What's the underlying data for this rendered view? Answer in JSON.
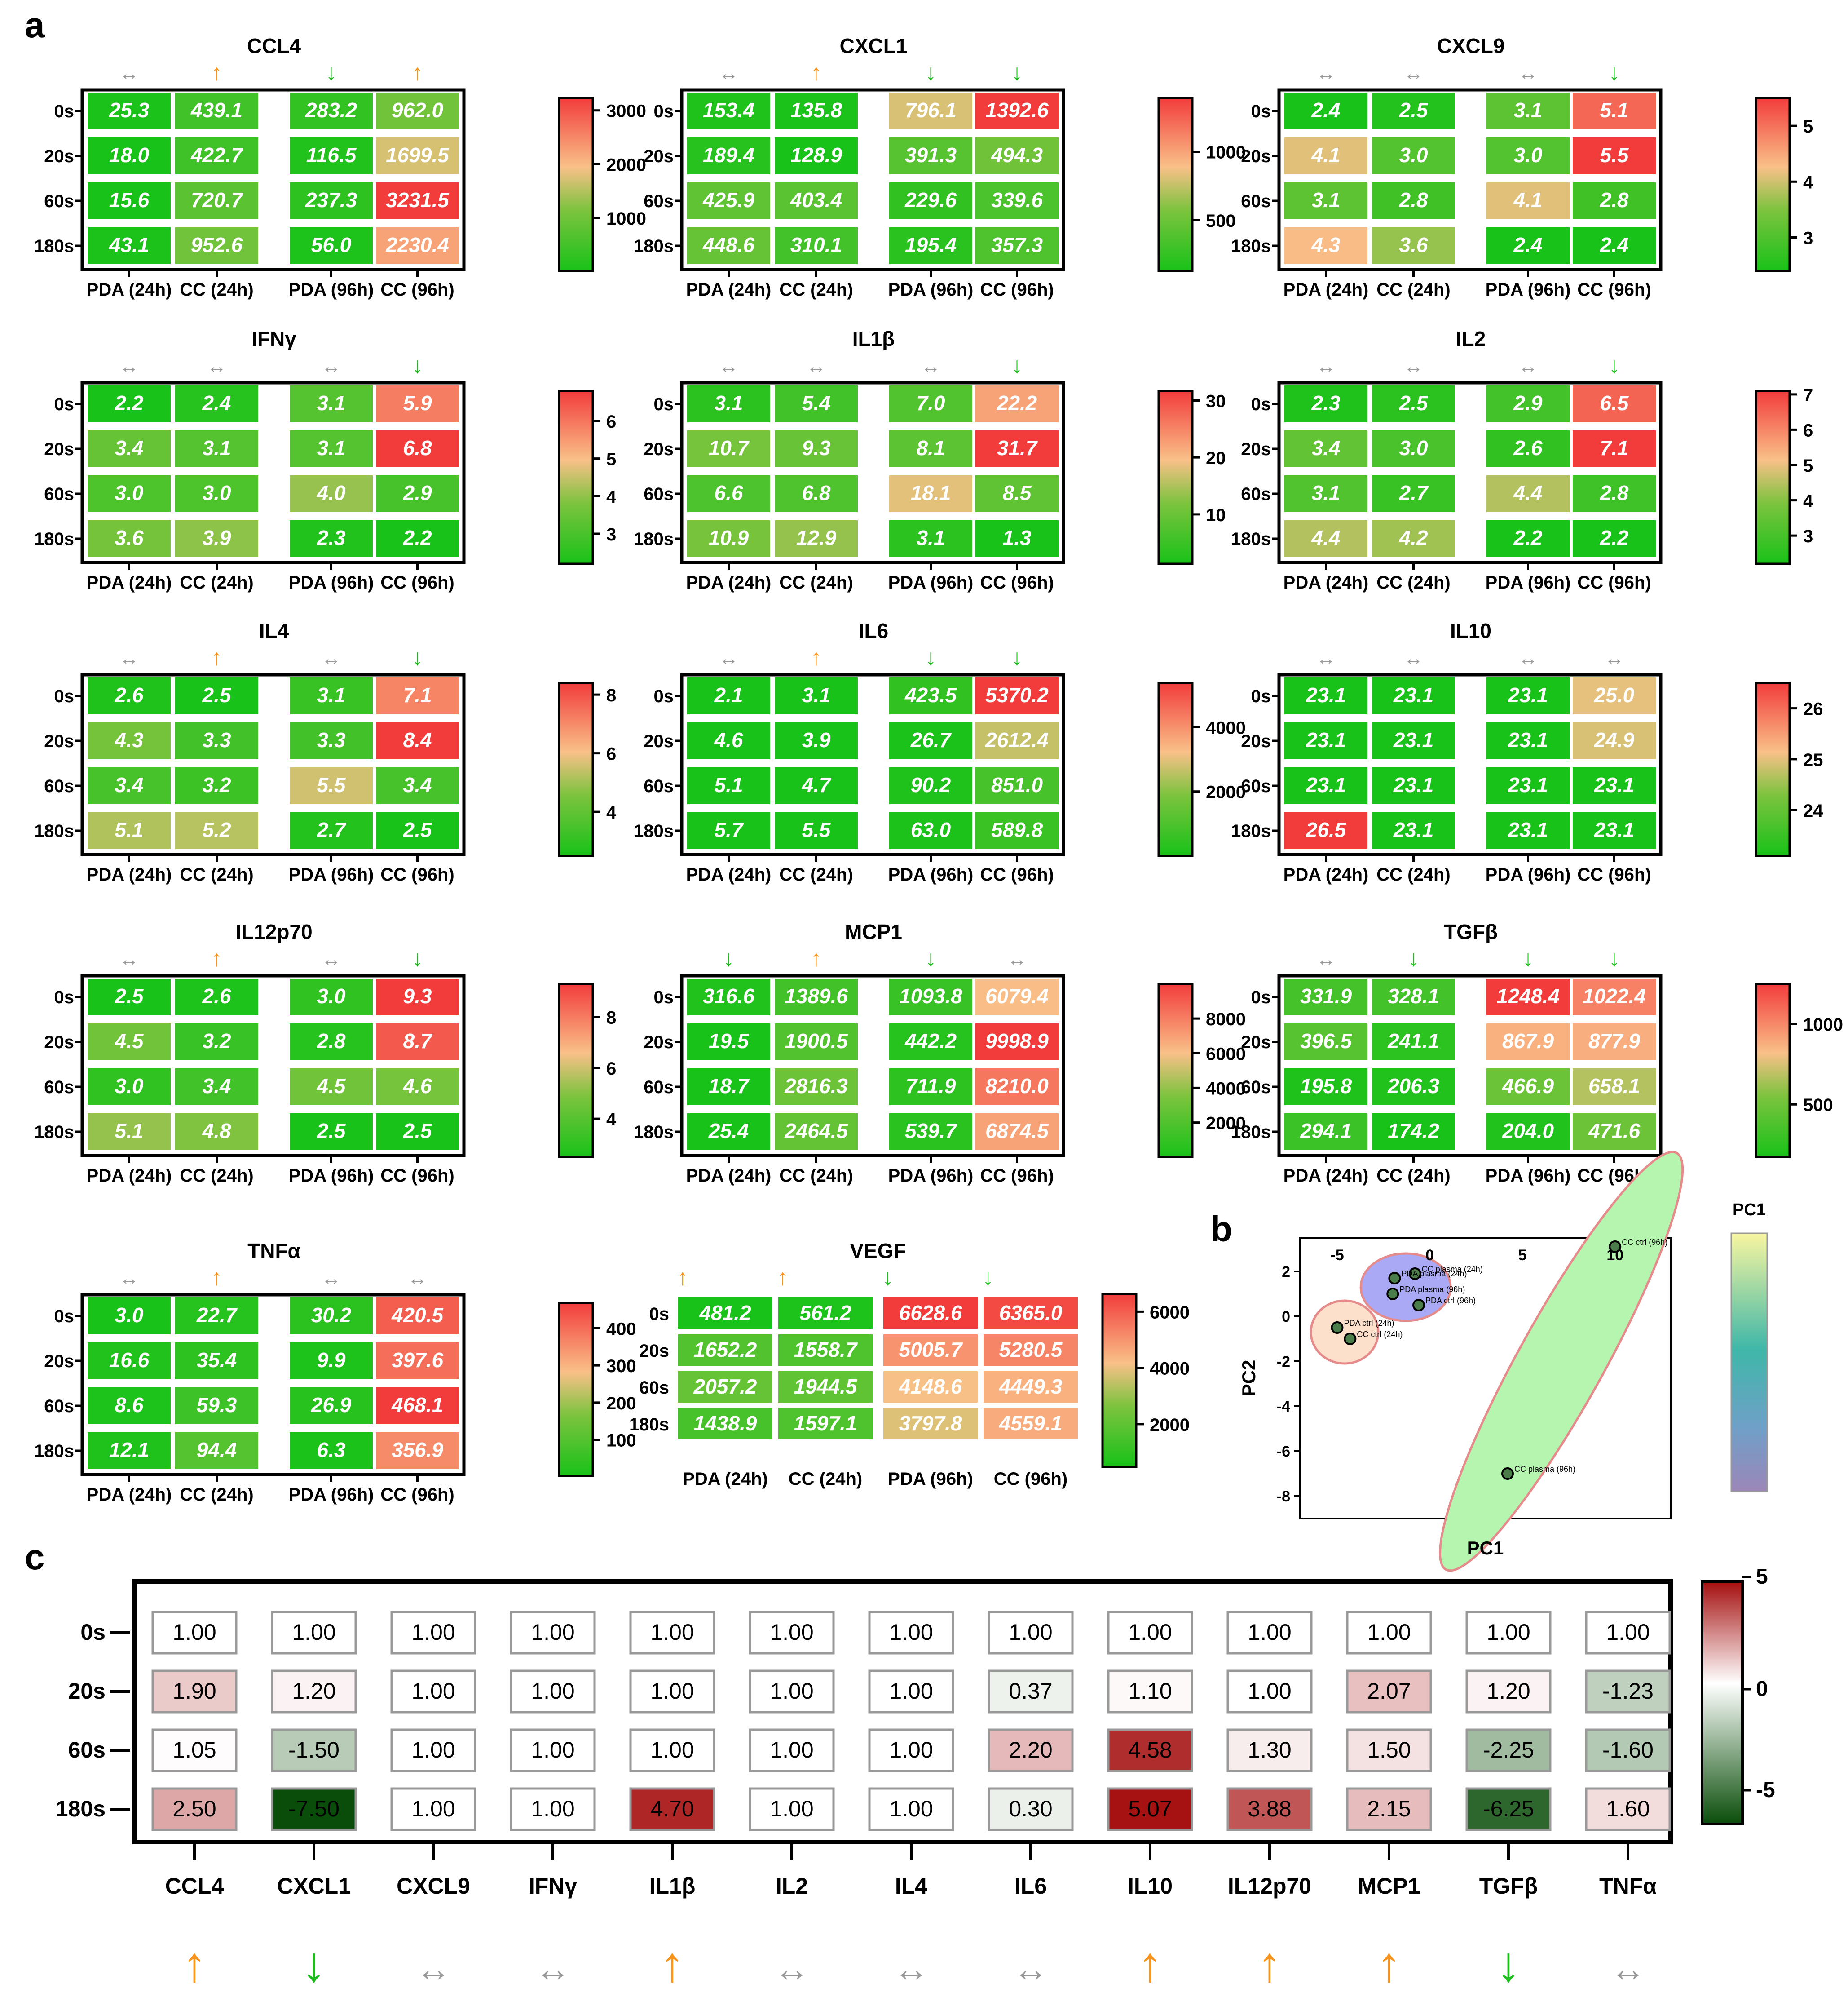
{
  "panel_labels": {
    "a": "a",
    "b": "b",
    "c": "c"
  },
  "heatmap_rows": [
    "0s",
    "20s",
    "60s",
    "180s"
  ],
  "heatmap_columns": [
    "PDA (24h)",
    "CC (24h)",
    "PDA (96h)",
    "CC (96h)"
  ],
  "arrow_glyphs": {
    "up": "↑",
    "down": "↓",
    "flat": "↔"
  },
  "colors": {
    "up_arrow": "#f7941d",
    "down_arrow": "#1ebd1e",
    "flat_arrow": "#999999",
    "heat_low": "#19c219",
    "heat_mid": "#f9c088",
    "heat_high": "#f23c3c",
    "fold_low": "#0a4d0a",
    "fold_mid": "#ffffff",
    "fold_high": "#a50f0f",
    "pca_pda_ctrl": "#fde0cc",
    "pca_plasma": "#a9a9f5",
    "pca_cc": "#b5f5b0",
    "pc1_bar_top": "#f8f5a0",
    "pc1_bar_bottom": "#9c86b8"
  },
  "chart_data": [
    {
      "type": "heatmap",
      "title": "CCL4",
      "arrows": [
        "flat",
        "up",
        "down",
        "up"
      ],
      "colorbar_ticks": [
        1000,
        2000,
        3000
      ],
      "range": [
        15.6,
        3231.5
      ],
      "values": [
        [
          25.3,
          439.1,
          283.2,
          962.0
        ],
        [
          18.0,
          422.7,
          116.5,
          1699.5
        ],
        [
          15.6,
          720.7,
          237.3,
          3231.5
        ],
        [
          43.1,
          952.6,
          56.0,
          2230.4
        ]
      ]
    },
    {
      "type": "heatmap",
      "title": "CXCL1",
      "arrows": [
        "flat",
        "up",
        "down",
        "down"
      ],
      "colorbar_ticks": [
        500,
        1000
      ],
      "range": [
        128.9,
        1392.6
      ],
      "values": [
        [
          153.4,
          135.8,
          796.1,
          1392.6
        ],
        [
          189.4,
          128.9,
          391.3,
          494.3
        ],
        [
          425.9,
          403.4,
          229.6,
          339.6
        ],
        [
          448.6,
          310.1,
          195.4,
          357.3
        ]
      ]
    },
    {
      "type": "heatmap",
      "title": "CXCL9",
      "arrows": [
        "flat",
        "flat",
        "flat",
        "down"
      ],
      "colorbar_ticks": [
        3,
        4,
        5
      ],
      "range": [
        2.4,
        5.5
      ],
      "values": [
        [
          2.4,
          2.5,
          3.1,
          5.1
        ],
        [
          4.1,
          3.0,
          3.0,
          5.5
        ],
        [
          3.1,
          2.8,
          4.1,
          2.8
        ],
        [
          4.3,
          3.6,
          2.4,
          2.4
        ]
      ]
    },
    {
      "type": "heatmap",
      "title": "IFNγ",
      "arrows": [
        "flat",
        "flat",
        "flat",
        "down"
      ],
      "colorbar_ticks": [
        3,
        4,
        5,
        6
      ],
      "range": [
        2.2,
        6.8
      ],
      "values": [
        [
          2.2,
          2.4,
          3.1,
          5.9
        ],
        [
          3.4,
          3.1,
          3.1,
          6.8
        ],
        [
          3.0,
          3.0,
          4.0,
          2.9
        ],
        [
          3.6,
          3.9,
          2.3,
          2.2
        ]
      ]
    },
    {
      "type": "heatmap",
      "title": "IL1β",
      "arrows": [
        "flat",
        "flat",
        "flat",
        "down"
      ],
      "colorbar_ticks": [
        10,
        20,
        30
      ],
      "range": [
        1.3,
        31.7
      ],
      "values": [
        [
          3.1,
          5.4,
          7.0,
          22.2
        ],
        [
          10.7,
          9.3,
          8.1,
          31.7
        ],
        [
          6.6,
          6.8,
          18.1,
          8.5
        ],
        [
          10.9,
          12.9,
          3.1,
          1.3
        ]
      ]
    },
    {
      "type": "heatmap",
      "title": "IL2",
      "arrows": [
        "flat",
        "flat",
        "flat",
        "down"
      ],
      "colorbar_ticks": [
        3,
        4,
        5,
        6,
        7
      ],
      "range": [
        2.2,
        7.1
      ],
      "values": [
        [
          2.3,
          2.5,
          2.9,
          6.5
        ],
        [
          3.4,
          3.0,
          2.6,
          7.1
        ],
        [
          3.1,
          2.7,
          4.4,
          2.8
        ],
        [
          4.4,
          4.2,
          2.2,
          2.2
        ]
      ]
    },
    {
      "type": "heatmap",
      "title": "IL4",
      "arrows": [
        "flat",
        "up",
        "flat",
        "down"
      ],
      "colorbar_ticks": [
        4,
        6,
        8
      ],
      "range": [
        2.5,
        8.4
      ],
      "values": [
        [
          2.6,
          2.5,
          3.1,
          7.1
        ],
        [
          4.3,
          3.3,
          3.3,
          8.4
        ],
        [
          3.4,
          3.2,
          5.5,
          3.4
        ],
        [
          5.1,
          5.2,
          2.7,
          2.5
        ]
      ]
    },
    {
      "type": "heatmap",
      "title": "IL6",
      "arrows": [
        "flat",
        "up",
        "down",
        "down"
      ],
      "colorbar_ticks": [
        2000,
        4000
      ],
      "range": [
        2.1,
        5370.2
      ],
      "values": [
        [
          2.1,
          3.1,
          423.5,
          5370.2
        ],
        [
          4.6,
          3.9,
          26.7,
          2612.4
        ],
        [
          5.1,
          4.7,
          90.2,
          851.0
        ],
        [
          5.7,
          5.5,
          63.0,
          589.8
        ]
      ]
    },
    {
      "type": "heatmap",
      "title": "IL10",
      "arrows": [
        "flat",
        "flat",
        "flat",
        "flat"
      ],
      "colorbar_ticks": [
        24,
        25,
        26
      ],
      "range": [
        23.1,
        26.5
      ],
      "values": [
        [
          23.1,
          23.1,
          23.1,
          25.0
        ],
        [
          23.1,
          23.1,
          23.1,
          24.9
        ],
        [
          23.1,
          23.1,
          23.1,
          23.1
        ],
        [
          26.5,
          23.1,
          23.1,
          23.1
        ]
      ]
    },
    {
      "type": "heatmap",
      "title": "IL12p70",
      "arrows": [
        "flat",
        "up",
        "flat",
        "down"
      ],
      "colorbar_ticks": [
        4,
        6,
        8
      ],
      "range": [
        2.5,
        9.3
      ],
      "values": [
        [
          2.5,
          2.6,
          3.0,
          9.3
        ],
        [
          4.5,
          3.2,
          2.8,
          8.7
        ],
        [
          3.0,
          3.4,
          4.5,
          4.6
        ],
        [
          5.1,
          4.8,
          2.5,
          2.5
        ]
      ]
    },
    {
      "type": "heatmap",
      "title": "MCP1",
      "arrows": [
        "down",
        "up",
        "down",
        "flat"
      ],
      "colorbar_ticks": [
        2000,
        4000,
        6000,
        8000
      ],
      "range": [
        18.7,
        9998.9
      ],
      "values": [
        [
          316.6,
          1389.6,
          1093.8,
          6079.4
        ],
        [
          19.5,
          1900.5,
          442.2,
          9998.9
        ],
        [
          18.7,
          2816.3,
          711.9,
          8210.0
        ],
        [
          25.4,
          2464.5,
          539.7,
          6874.5
        ]
      ]
    },
    {
      "type": "heatmap",
      "title": "TGFβ",
      "arrows": [
        "flat",
        "down",
        "down",
        "down"
      ],
      "colorbar_ticks": [
        500,
        1000
      ],
      "range": [
        174.2,
        1248.4
      ],
      "values": [
        [
          331.9,
          328.1,
          1248.4,
          1022.4
        ],
        [
          396.5,
          241.1,
          867.9,
          877.9
        ],
        [
          195.8,
          206.3,
          466.9,
          658.1
        ],
        [
          294.1,
          174.2,
          204.0,
          471.6
        ]
      ]
    },
    {
      "type": "heatmap",
      "title": "TNFα",
      "arrows": [
        "flat",
        "up",
        "flat",
        "flat"
      ],
      "colorbar_ticks": [
        100,
        200,
        300,
        400
      ],
      "range": [
        3.0,
        468.1
      ],
      "values": [
        [
          3.0,
          22.7,
          30.2,
          420.5
        ],
        [
          16.6,
          35.4,
          9.9,
          397.6
        ],
        [
          8.6,
          59.3,
          26.9,
          468.1
        ],
        [
          12.1,
          94.4,
          6.3,
          356.9
        ]
      ]
    },
    {
      "type": "heatmap",
      "title": "VEGF",
      "arrows": [
        "up",
        "up",
        "down",
        "down"
      ],
      "colorbar_ticks": [
        2000,
        4000,
        6000
      ],
      "range": [
        481.2,
        6628.6
      ],
      "values": [
        [
          481.2,
          561.2,
          6628.6,
          6365.0
        ],
        [
          1652.2,
          1558.7,
          5005.7,
          5280.5
        ],
        [
          2057.2,
          1944.5,
          4148.6,
          4449.3
        ],
        [
          1438.9,
          1597.1,
          3797.8,
          4559.1
        ]
      ]
    },
    {
      "type": "scatter",
      "xlabel": "PC1",
      "ylabel": "PC2",
      "xlim": [
        -7,
        13
      ],
      "ylim": [
        -9,
        3.5
      ],
      "xticks": [
        -5,
        0,
        5,
        10
      ],
      "yticks": [
        2,
        0,
        -2,
        -4,
        -6,
        -8
      ],
      "colorbar_title": "PC1",
      "points": [
        {
          "label": "CC plasma (24h)",
          "x": -0.8,
          "y": 1.9
        },
        {
          "label": "PDA plasma (24h)",
          "x": -1.9,
          "y": 1.7
        },
        {
          "label": "PDA plasma (96h)",
          "x": -2.0,
          "y": 1.0
        },
        {
          "label": "PDA ctrl (96h)",
          "x": -0.6,
          "y": 0.5
        },
        {
          "label": "PDA ctrl (24h)",
          "x": -5.0,
          "y": -0.5
        },
        {
          "label": "CC ctrl (24h)",
          "x": -4.3,
          "y": -1.0
        },
        {
          "label": "CC ctrl (96h)",
          "x": 10.0,
          "y": 3.1
        },
        {
          "label": "CC plasma (96h)",
          "x": 4.2,
          "y": -7.0
        }
      ]
    },
    {
      "type": "heatmap",
      "title": "",
      "colorbar_ticks": [
        5,
        0,
        -5
      ],
      "range": [
        -7.5,
        5.07
      ],
      "rows": [
        "0s",
        "20s",
        "60s",
        "180s"
      ],
      "columns": [
        "CCL4",
        "CXCL1",
        "CXCL9",
        "IFNγ",
        "IL1β",
        "IL2",
        "IL4",
        "IL6",
        "IL10",
        "IL12p70",
        "MCP1",
        "TGFβ",
        "TNFα"
      ],
      "arrows": [
        "up",
        "down",
        "flat",
        "flat",
        "up",
        "flat",
        "flat",
        "flat",
        "up",
        "up",
        "up",
        "down",
        "flat"
      ],
      "values": [
        [
          "1.00",
          "1.00",
          "1.00",
          "1.00",
          "1.00",
          "1.00",
          "1.00",
          "1.00",
          "1.00",
          "1.00",
          "1.00",
          "1.00",
          "1.00"
        ],
        [
          "1.90",
          "1.20",
          "1.00",
          "1.00",
          "1.00",
          "1.00",
          "1.00",
          "0.37",
          "1.10",
          "1.00",
          "2.07",
          "1.20",
          "-1.23"
        ],
        [
          "1.05",
          "-1.50",
          "1.00",
          "1.00",
          "1.00",
          "1.00",
          "1.00",
          "2.20",
          "4.58",
          "1.30",
          "1.50",
          "-2.25",
          "-1.60"
        ],
        [
          "2.50",
          "-7.50",
          "1.00",
          "1.00",
          "4.70",
          "1.00",
          "1.00",
          "0.30",
          "5.07",
          "3.88",
          "2.15",
          "-6.25",
          "1.60"
        ]
      ]
    }
  ]
}
